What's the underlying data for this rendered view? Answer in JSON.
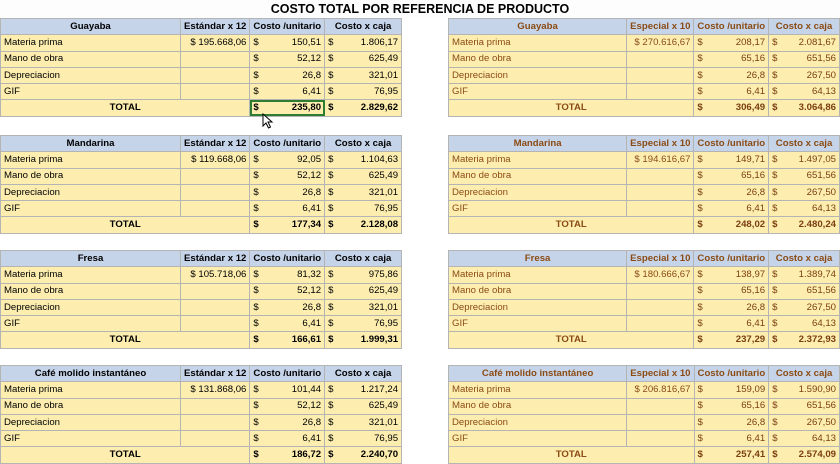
{
  "title": "COSTO TOTAL POR REFERENCIA DE PRODUCTO",
  "currency": "$",
  "blocks": [
    {
      "left": {
        "product": "Guayaba",
        "std_label": "Estándar x 12",
        "unit_label": "Costo /unitario",
        "box_label": "Costo x caja",
        "rows": [
          {
            "label": "Materia prima",
            "std": "$ 195.668,06",
            "unit": "150,51",
            "box": "1.806,17"
          },
          {
            "label": "Mano de obra",
            "std": "",
            "unit": "52,12",
            "box": "625,49"
          },
          {
            "label": "Depreciacion",
            "std": "",
            "unit": "26,8",
            "box": "321,01"
          },
          {
            "label": "GIF",
            "std": "",
            "unit": "6,41",
            "box": "76,95"
          }
        ],
        "total": {
          "label": "TOTAL",
          "unit": "235,80",
          "box": "2.829,62"
        }
      },
      "right": {
        "product": "Guayaba",
        "std_label": "Especial x 10",
        "unit_label": "Costo /unitario",
        "box_label": "Costo x caja",
        "rows": [
          {
            "label": "Materia prima",
            "std": "$ 270.616,67",
            "unit": "208,17",
            "box": "2.081,67"
          },
          {
            "label": "Mano de obra",
            "std": "",
            "unit": "65,16",
            "box": "651,56"
          },
          {
            "label": "Depreciacion",
            "std": "",
            "unit": "26,8",
            "box": "267,50"
          },
          {
            "label": "GIF",
            "std": "",
            "unit": "6,41",
            "box": "64,13"
          }
        ],
        "total": {
          "label": "TOTAL",
          "unit": "306,49",
          "box": "3.064,86"
        }
      }
    },
    {
      "left": {
        "product": "Mandarina",
        "std_label": "Estándar x 12",
        "unit_label": "Costo /unitario",
        "box_label": "Costo x caja",
        "rows": [
          {
            "label": "Materia prima",
            "std": "$ 119.668,06",
            "unit": "92,05",
            "box": "1.104,63"
          },
          {
            "label": "Mano de obra",
            "std": "",
            "unit": "52,12",
            "box": "625,49"
          },
          {
            "label": "Depreciacion",
            "std": "",
            "unit": "26,8",
            "box": "321,01"
          },
          {
            "label": "GIF",
            "std": "",
            "unit": "6,41",
            "box": "76,95"
          }
        ],
        "total": {
          "label": "TOTAL",
          "unit": "177,34",
          "box": "2.128,08"
        }
      },
      "right": {
        "product": "Mandarina",
        "std_label": "Especial x 10",
        "unit_label": "Costo /unitario",
        "box_label": "Costo x caja",
        "rows": [
          {
            "label": "Materia prima",
            "std": "$ 194.616,67",
            "unit": "149,71",
            "box": "1.497,05"
          },
          {
            "label": "Mano de obra",
            "std": "",
            "unit": "65,16",
            "box": "651,56"
          },
          {
            "label": "Depreciacion",
            "std": "",
            "unit": "26,8",
            "box": "267,50"
          },
          {
            "label": "GIF",
            "std": "",
            "unit": "6,41",
            "box": "64,13"
          }
        ],
        "total": {
          "label": "TOTAL",
          "unit": "248,02",
          "box": "2.480,24"
        }
      }
    },
    {
      "left": {
        "product": "Fresa",
        "std_label": "Estándar x 12",
        "unit_label": "Costo /unitario",
        "box_label": "Costo x caja",
        "rows": [
          {
            "label": "Materia prima",
            "std": "$ 105.718,06",
            "unit": "81,32",
            "box": "975,86"
          },
          {
            "label": "Mano de obra",
            "std": "",
            "unit": "52,12",
            "box": "625,49"
          },
          {
            "label": "Depreciacion",
            "std": "",
            "unit": "26,8",
            "box": "321,01"
          },
          {
            "label": "GIF",
            "std": "",
            "unit": "6,41",
            "box": "76,95"
          }
        ],
        "total": {
          "label": "TOTAL",
          "unit": "166,61",
          "box": "1.999,31"
        }
      },
      "right": {
        "product": "Fresa",
        "std_label": "Especial x 10",
        "unit_label": "Costo /unitario",
        "box_label": "Costo x caja",
        "rows": [
          {
            "label": "Materia prima",
            "std": "$ 180.666,67",
            "unit": "138,97",
            "box": "1.389,74"
          },
          {
            "label": "Mano de obra",
            "std": "",
            "unit": "65,16",
            "box": "651,56"
          },
          {
            "label": "Depreciacion",
            "std": "",
            "unit": "26,8",
            "box": "267,50"
          },
          {
            "label": "GIF",
            "std": "",
            "unit": "6,41",
            "box": "64,13"
          }
        ],
        "total": {
          "label": "TOTAL",
          "unit": "237,29",
          "box": "2.372,93"
        }
      }
    },
    {
      "left": {
        "product": "Café molido instantáneo",
        "std_label": "Estándar x 12",
        "unit_label": "Costo /unitario",
        "box_label": "Costo x caja",
        "rows": [
          {
            "label": "Materia prima",
            "std": "$ 131.868,06",
            "unit": "101,44",
            "box": "1.217,24"
          },
          {
            "label": "Mano de obra",
            "std": "",
            "unit": "52,12",
            "box": "625,49"
          },
          {
            "label": "Depreciacion",
            "std": "",
            "unit": "26,8",
            "box": "321,01"
          },
          {
            "label": "GIF",
            "std": "",
            "unit": "6,41",
            "box": "76,95"
          }
        ],
        "total": {
          "label": "TOTAL",
          "unit": "186,72",
          "box": "2.240,70"
        }
      },
      "right": {
        "product": "Café molido instantáneo",
        "std_label": "Especial x 10",
        "unit_label": "Costo /unitario",
        "box_label": "Costo x caja",
        "rows": [
          {
            "label": "Materia prima",
            "std": "$ 206.816,67",
            "unit": "159,09",
            "box": "1.590,90"
          },
          {
            "label": "Mano de obra",
            "std": "",
            "unit": "65,16",
            "box": "651,56"
          },
          {
            "label": "Depreciacion",
            "std": "",
            "unit": "26,8",
            "box": "267,50"
          },
          {
            "label": "GIF",
            "std": "",
            "unit": "6,41",
            "box": "64,13"
          }
        ],
        "total": {
          "label": "TOTAL",
          "unit": "257,41",
          "box": "2.574,09"
        }
      }
    }
  ],
  "colors": {
    "header": "#c6d4ea",
    "body": "#fdeeb0",
    "right_text": "#8a4b14",
    "selection": "#2e7d32"
  }
}
